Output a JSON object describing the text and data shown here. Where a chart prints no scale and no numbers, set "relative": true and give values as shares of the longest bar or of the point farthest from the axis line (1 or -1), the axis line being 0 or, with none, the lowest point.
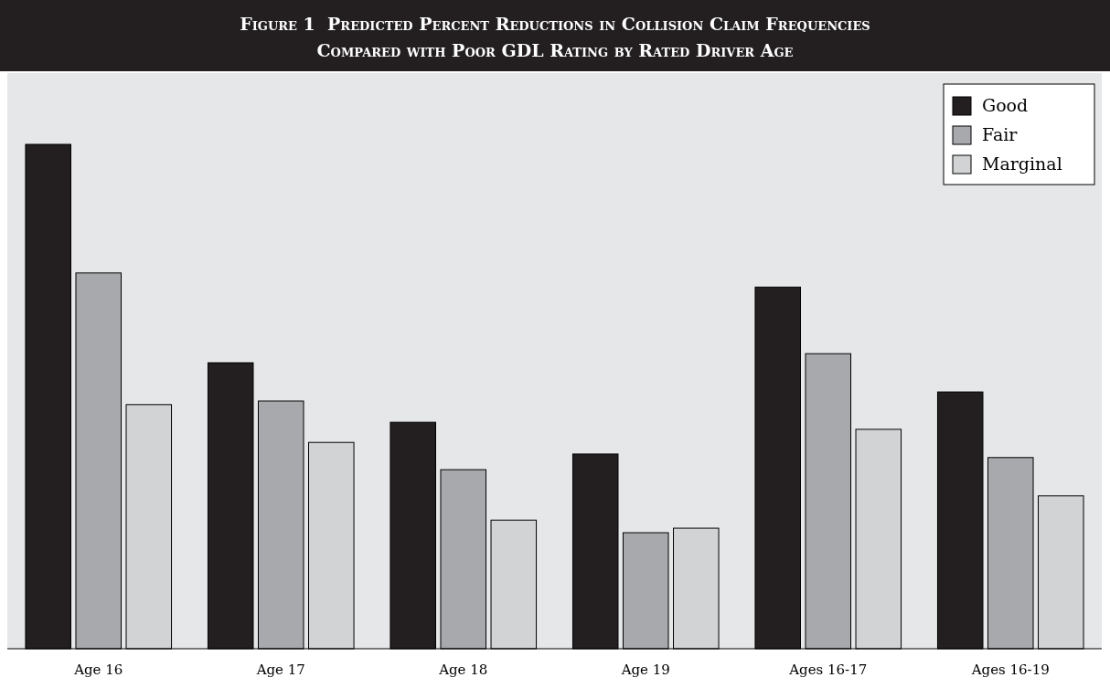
{
  "chart_data": {
    "type": "bar",
    "title": "Figure 1  Predicted Percent Reductions in Collision Claim Frequencies Compared with Poor GDL Rating by Rated Driver Age",
    "relative": true,
    "legend": "top right",
    "categories": [
      "Age 16",
      "Age 17",
      "Age 18",
      "Age 19",
      "Ages 16-17",
      "Ages 16-19"
    ],
    "series": [
      {
        "name": "Good",
        "color": "#231f20",
        "values": [
          1,
          0.567,
          0.449,
          0.386,
          0.717,
          0.509
        ]
      },
      {
        "name": "Fair",
        "color": "#a7a9ac",
        "values": [
          0.745,
          0.491,
          0.355,
          0.23,
          0.585,
          0.379
        ]
      },
      {
        "name": "Marginal",
        "color": "#d1d3d4",
        "values": [
          0.484,
          0.409,
          0.255,
          0.239,
          0.435,
          0.303
        ]
      }
    ]
  }
}
